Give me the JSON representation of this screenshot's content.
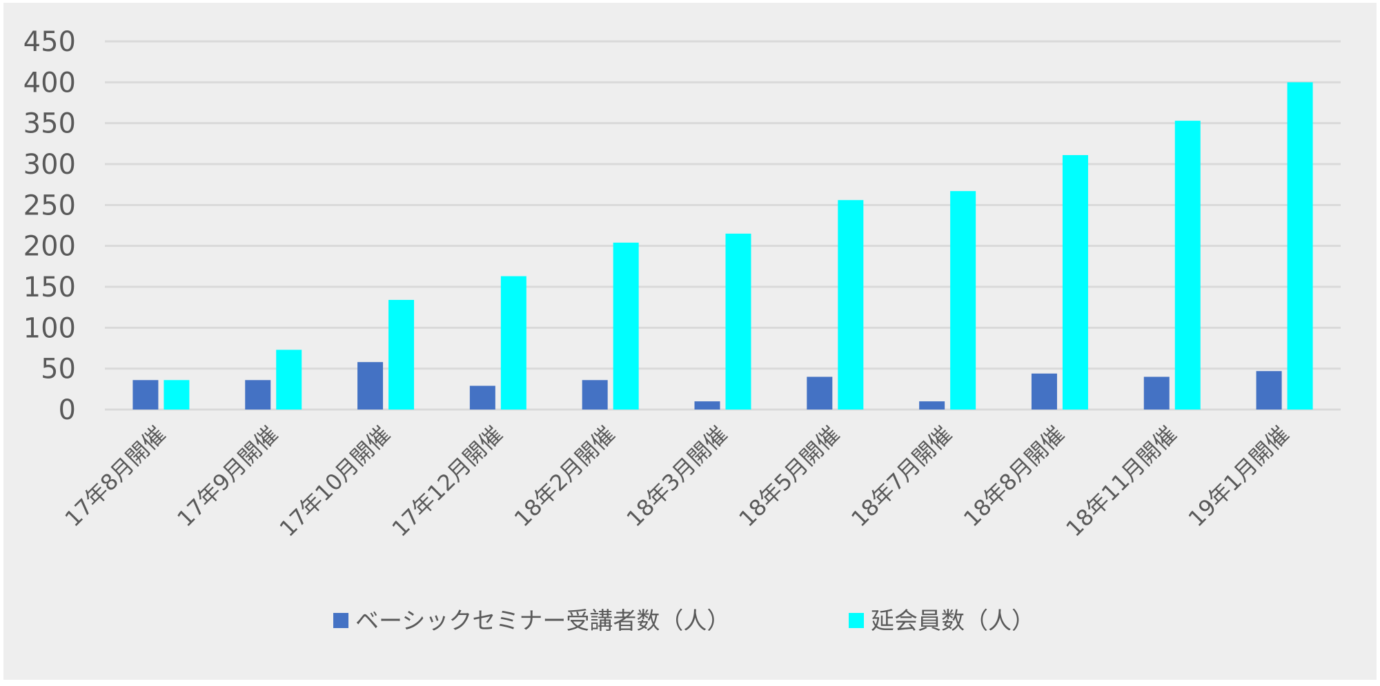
{
  "chart_data": {
    "type": "bar",
    "title": "",
    "xlabel": "",
    "ylabel": "",
    "ylim": [
      0,
      450
    ],
    "yticks": [
      0,
      50,
      100,
      150,
      200,
      250,
      300,
      350,
      400,
      450
    ],
    "grid": true,
    "legend_position": "bottom",
    "categories": [
      "17年8月開催",
      "17年9月開催",
      "17年10月開催",
      "17年12月開催",
      "18年2月開催",
      "18年3月開催",
      "18年5月開催",
      "18年7月開催",
      "18年8月開催",
      "18年11月開催",
      "19年1月開催"
    ],
    "series": [
      {
        "name": "ベーシックセミナー受講者数（人）",
        "color": "#4472c4",
        "values": [
          36,
          36,
          58,
          29,
          36,
          10,
          40,
          10,
          44,
          40,
          47
        ]
      },
      {
        "name": "延会員数（人）",
        "color": "#00ffff",
        "values": [
          36,
          73,
          134,
          163,
          204,
          215,
          256,
          267,
          311,
          353,
          400
        ]
      }
    ]
  }
}
